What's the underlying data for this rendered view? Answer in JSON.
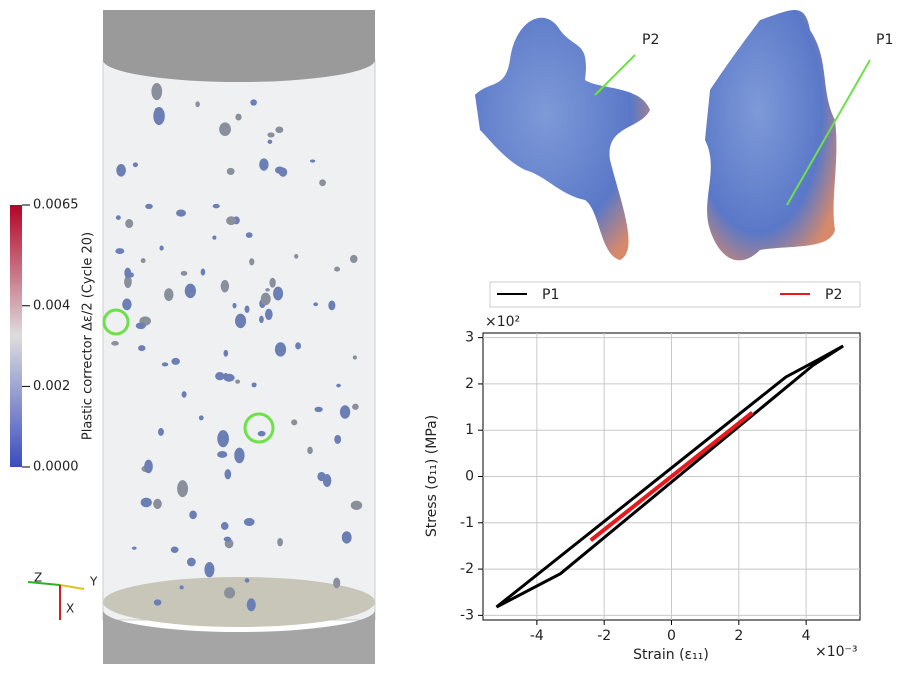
{
  "colorbar": {
    "label": "Plastic corrector Δε/2 (Cycle 20)",
    "lim": [
      0,
      0.0065
    ],
    "ticks": [
      {
        "value": 0,
        "label": "0.0000"
      },
      0.002,
      0.004,
      0.0065
    ]
  },
  "axes_triad": {
    "z": "Z",
    "y": "Y",
    "x": "X"
  },
  "annotations": {
    "p2": "P2",
    "p1": "P1"
  },
  "chart_data": {
    "type": "line",
    "xlabel": "Strain (ε₁₁)",
    "ylabel": "Stress (σ₁₁) (MPa)",
    "x_multiplier": "×10⁻³",
    "y_multiplier": "×10²",
    "xlim": [
      -5.6,
      5.6
    ],
    "ylim": [
      -3.1,
      3.1
    ],
    "xticks": [
      -4,
      -2,
      0,
      2,
      4
    ],
    "yticks": [
      -3,
      -2,
      -1,
      0,
      1,
      2,
      3
    ],
    "grid": true,
    "legend": "top",
    "series": [
      {
        "name": "P1",
        "color": "#000000",
        "x": [
          -5.2,
          3.4,
          4.3,
          5.1,
          4.2,
          -3.3,
          -5.2
        ],
        "values": [
          -2.82,
          2.15,
          2.5,
          2.82,
          2.4,
          -2.1,
          -2.82
        ]
      },
      {
        "name": "P2",
        "color": "#e8191c",
        "x": [
          -2.4,
          2.4,
          -2.4
        ],
        "values": [
          -1.38,
          1.38,
          -1.38
        ]
      }
    ]
  }
}
